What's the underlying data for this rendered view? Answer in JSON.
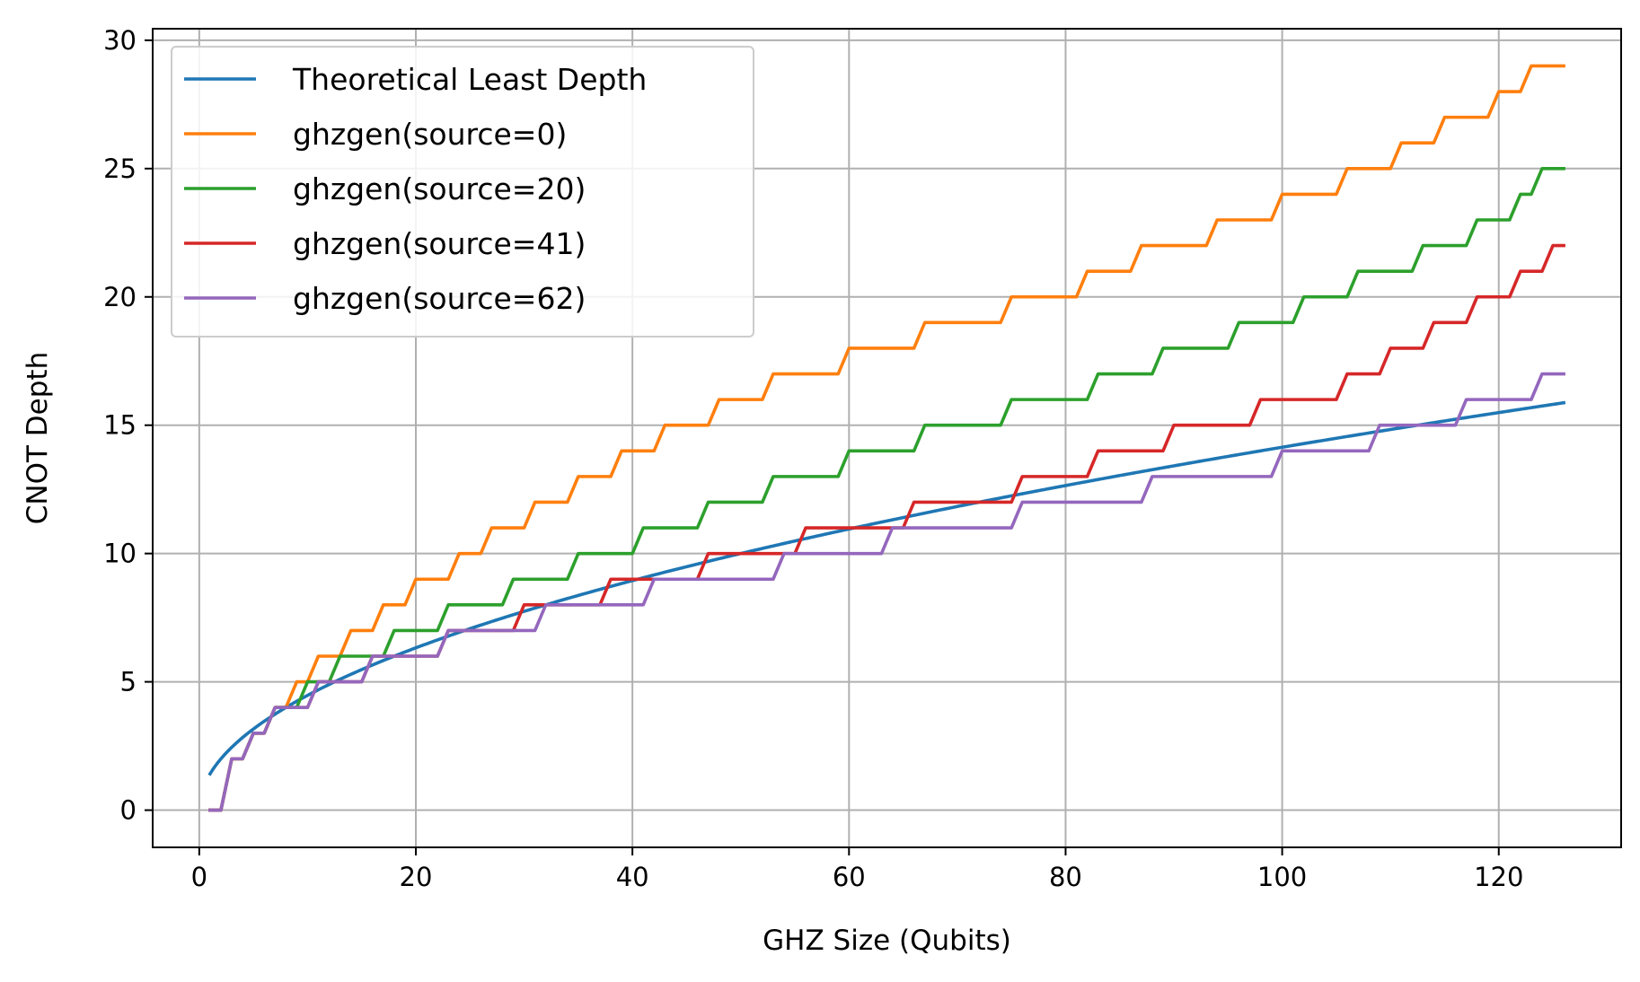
{
  "chart_data": {
    "type": "line",
    "title": "",
    "xlabel": "GHZ Size (Qubits)",
    "ylabel": "CNOT Depth",
    "xlim": [
      -4.3,
      131.3
    ],
    "ylim": [
      -1.45,
      30.45
    ],
    "xticks": [
      0,
      20,
      40,
      60,
      80,
      100,
      120
    ],
    "yticks": [
      0,
      5,
      10,
      15,
      20,
      25,
      30
    ],
    "grid": true,
    "legend_position": "top-left",
    "x_range": [
      1,
      126
    ],
    "series": [
      {
        "name": "Theoretical Least Depth",
        "color": "#1f77b4",
        "kind": "curve",
        "formula": "sqrt(2*n)",
        "sample_x": [
          1,
          5,
          10,
          20,
          40,
          60,
          80,
          100,
          126
        ],
        "sample_y": [
          0,
          3.2,
          4.5,
          5.7,
          8.3,
          10.4,
          12.1,
          13.6,
          15.35
        ]
      },
      {
        "name": "ghzgen(source=0)",
        "color": "#ff7f0e",
        "kind": "step",
        "steps": [
          [
            3,
            2
          ],
          [
            5,
            3
          ],
          [
            7,
            4
          ],
          [
            9,
            5
          ],
          [
            11,
            6
          ],
          [
            14,
            7
          ],
          [
            17,
            8
          ],
          [
            20,
            9
          ],
          [
            24,
            10
          ],
          [
            27,
            11
          ],
          [
            31,
            12
          ],
          [
            35,
            13
          ],
          [
            39,
            14
          ],
          [
            43,
            15
          ],
          [
            48,
            16
          ],
          [
            53,
            17
          ],
          [
            60,
            18
          ],
          [
            67,
            19
          ],
          [
            75,
            20
          ],
          [
            82,
            21
          ],
          [
            87,
            22
          ],
          [
            94,
            23
          ],
          [
            100,
            24
          ],
          [
            106,
            25
          ],
          [
            111,
            26
          ],
          [
            115,
            27
          ],
          [
            120,
            28
          ],
          [
            123,
            29
          ]
        ]
      },
      {
        "name": "ghzgen(source=20)",
        "color": "#2ca02c",
        "kind": "step",
        "steps": [
          [
            3,
            2
          ],
          [
            5,
            3
          ],
          [
            7,
            4
          ],
          [
            10,
            5
          ],
          [
            13,
            6
          ],
          [
            18,
            7
          ],
          [
            23,
            8
          ],
          [
            29,
            9
          ],
          [
            35,
            10
          ],
          [
            41,
            11
          ],
          [
            47,
            12
          ],
          [
            53,
            13
          ],
          [
            60,
            14
          ],
          [
            67,
            15
          ],
          [
            75,
            16
          ],
          [
            83,
            17
          ],
          [
            89,
            18
          ],
          [
            96,
            19
          ],
          [
            102,
            20
          ],
          [
            107,
            21
          ],
          [
            113,
            22
          ],
          [
            118,
            23
          ],
          [
            122,
            24
          ],
          [
            124,
            25
          ]
        ]
      },
      {
        "name": "ghzgen(source=41)",
        "color": "#d62728",
        "kind": "step",
        "steps": [
          [
            3,
            2
          ],
          [
            5,
            3
          ],
          [
            7,
            4
          ],
          [
            11,
            5
          ],
          [
            16,
            6
          ],
          [
            23,
            7
          ],
          [
            30,
            8
          ],
          [
            38,
            9
          ],
          [
            47,
            10
          ],
          [
            56,
            11
          ],
          [
            66,
            12
          ],
          [
            76,
            13
          ],
          [
            83,
            14
          ],
          [
            90,
            15
          ],
          [
            98,
            16
          ],
          [
            106,
            17
          ],
          [
            110,
            18
          ],
          [
            114,
            19
          ],
          [
            118,
            20
          ],
          [
            122,
            21
          ],
          [
            125,
            22
          ]
        ]
      },
      {
        "name": "ghzgen(source=62)",
        "color": "#9467bd",
        "kind": "step",
        "steps": [
          [
            3,
            2
          ],
          [
            5,
            3
          ],
          [
            7,
            4
          ],
          [
            11,
            5
          ],
          [
            16,
            6
          ],
          [
            23,
            7
          ],
          [
            32,
            8
          ],
          [
            42,
            9
          ],
          [
            54,
            10
          ],
          [
            64,
            11
          ],
          [
            76,
            12
          ],
          [
            88,
            13
          ],
          [
            100,
            14
          ],
          [
            109,
            15
          ],
          [
            117,
            16
          ],
          [
            124,
            17
          ]
        ]
      }
    ]
  }
}
